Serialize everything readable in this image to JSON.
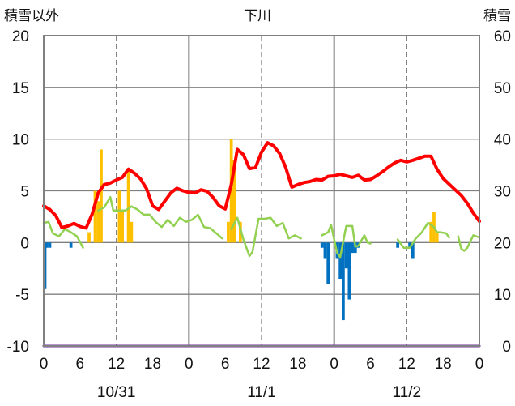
{
  "chart_data": {
    "type": "bar",
    "title": "下川",
    "left_axis_label": "積雪以外",
    "right_axis_label": "積雪",
    "left_ylim": [
      -10,
      20
    ],
    "left_yticks": [
      "20",
      "15",
      "10",
      "5",
      "0",
      "-5",
      "-10"
    ],
    "right_ylim": [
      0,
      60
    ],
    "right_yticks": [
      "60",
      "50",
      "40",
      "30",
      "20",
      "10",
      "0"
    ],
    "x_hours": [
      0,
      72
    ],
    "x_tick_labels": [
      "0",
      "6",
      "12",
      "18",
      "0",
      "6",
      "12",
      "18",
      "0",
      "6",
      "12",
      "18",
      "0"
    ],
    "day_labels": [
      "10/31",
      "11/1",
      "11/2"
    ],
    "grid": true,
    "series": [
      {
        "type": "bar",
        "color": "#FFC000",
        "points": [
          [
            7.5,
            1.0
          ],
          [
            8.5,
            5.0
          ],
          [
            9,
            4.0
          ],
          [
            9.5,
            9.0
          ],
          [
            12.5,
            5.0
          ],
          [
            13,
            3.0
          ],
          [
            14,
            7.0
          ],
          [
            14.5,
            2.0
          ],
          [
            30.5,
            2.0
          ],
          [
            31,
            10.0
          ],
          [
            31.5,
            8.0
          ],
          [
            32.5,
            2.0
          ],
          [
            64,
            2.0
          ],
          [
            64.5,
            3.0
          ],
          [
            65,
            1.0
          ]
        ]
      },
      {
        "type": "bar",
        "color": "#0070C0",
        "points": [
          [
            0.2,
            -4.5
          ],
          [
            0.5,
            -0.5
          ],
          [
            1,
            -0.5
          ],
          [
            4.5,
            -0.5
          ],
          [
            46,
            -0.5
          ],
          [
            46.5,
            -1.5
          ],
          [
            47,
            -4.0
          ],
          [
            48.5,
            -1.5
          ],
          [
            49,
            -3.5
          ],
          [
            49.5,
            -7.5
          ],
          [
            50,
            -2.5
          ],
          [
            50.5,
            -5.5
          ],
          [
            51,
            -1.0
          ],
          [
            51.5,
            -1.0
          ],
          [
            52,
            -0.5
          ],
          [
            58.5,
            -0.5
          ],
          [
            60.5,
            -0.5
          ],
          [
            61,
            -1.5
          ]
        ]
      },
      {
        "type": "line",
        "color": "#92D050",
        "segments": [
          [
            [
              0,
              1.9
            ],
            [
              0.8,
              2.0
            ],
            [
              1.5,
              0.9
            ],
            [
              2.5,
              0.6
            ],
            [
              3.5,
              1.3
            ],
            [
              4.5,
              1.0
            ],
            [
              5.5,
              0.6
            ],
            [
              6.5,
              -0.5
            ]
          ],
          [
            [
              9,
              3.1
            ],
            [
              10,
              3.4
            ],
            [
              11,
              4.4
            ],
            [
              11.5,
              3.1
            ],
            [
              12.5,
              3.1
            ],
            [
              13.5,
              3.1
            ],
            [
              14.5,
              3.5
            ],
            [
              15.5,
              3.2
            ],
            [
              16.5,
              2.7
            ],
            [
              17.5,
              2.7
            ],
            [
              18.5,
              2.0
            ],
            [
              19.5,
              1.5
            ],
            [
              20.5,
              2.2
            ],
            [
              21.5,
              1.6
            ],
            [
              22.5,
              2.4
            ],
            [
              23.5,
              2.0
            ],
            [
              24.5,
              2.2
            ],
            [
              25.5,
              2.7
            ],
            [
              26.5,
              1.5
            ],
            [
              27.5,
              1.4
            ],
            [
              28.5,
              0.9
            ],
            [
              29.5,
              0.4
            ]
          ],
          [
            [
              31,
              1.3
            ],
            [
              32,
              2.4
            ],
            [
              33,
              0.3
            ],
            [
              34,
              -1.3
            ],
            [
              34.5,
              -0.9
            ],
            [
              35.5,
              2.3
            ],
            [
              36.5,
              2.3
            ],
            [
              37.5,
              2.4
            ],
            [
              38.5,
              1.6
            ],
            [
              39.5,
              1.9
            ],
            [
              40.5,
              0.4
            ],
            [
              41.5,
              0.7
            ],
            [
              42.5,
              0.4
            ]
          ],
          [
            [
              46,
              0.7
            ],
            [
              47,
              1.0
            ],
            [
              47.5,
              1.7
            ],
            [
              48,
              0.3
            ],
            [
              48.5,
              -1.0
            ],
            [
              49,
              -1.4
            ],
            [
              50,
              1.6
            ],
            [
              51,
              1.6
            ],
            [
              51.5,
              -0.4
            ],
            [
              52,
              -0.3
            ],
            [
              53,
              0.7
            ],
            [
              53.5,
              0.0
            ],
            [
              54,
              -0.1
            ]
          ],
          [
            [
              58.5,
              0.3
            ],
            [
              59.5,
              -0.5
            ],
            [
              60.5,
              -0.5
            ],
            [
              61.5,
              0.4
            ],
            [
              62.5,
              1.0
            ],
            [
              63.5,
              1.9
            ],
            [
              64.5,
              1.5
            ],
            [
              65,
              1.0
            ],
            [
              65.5,
              1.0
            ],
            [
              66.5,
              0.9
            ],
            [
              67,
              0.5
            ]
          ],
          [
            [
              68.5,
              0.6
            ],
            [
              69,
              -0.6
            ],
            [
              69.5,
              -0.8
            ],
            [
              70,
              -0.5
            ],
            [
              71,
              0.7
            ],
            [
              72,
              0.5
            ]
          ]
        ]
      },
      {
        "type": "line",
        "color": "#FF0000",
        "axis": "right",
        "points": [
          [
            0,
            27.1
          ],
          [
            1,
            26.4
          ],
          [
            2,
            25.2
          ],
          [
            3,
            22.9
          ],
          [
            4,
            23.2
          ],
          [
            5,
            23.7
          ],
          [
            6,
            23.1
          ],
          [
            7,
            22.8
          ],
          [
            8,
            25.5
          ],
          [
            9,
            29.6
          ],
          [
            10,
            31.2
          ],
          [
            11,
            31.5
          ],
          [
            12,
            32.1
          ],
          [
            13,
            32.6
          ],
          [
            14,
            34.2
          ],
          [
            15,
            33.4
          ],
          [
            16,
            32.3
          ],
          [
            17,
            30.4
          ],
          [
            18,
            27.1
          ],
          [
            19,
            26.4
          ],
          [
            20,
            28.0
          ],
          [
            21,
            29.6
          ],
          [
            22,
            30.5
          ],
          [
            23,
            30.0
          ],
          [
            24,
            29.7
          ],
          [
            25,
            29.6
          ],
          [
            26,
            30.2
          ],
          [
            27,
            29.9
          ],
          [
            28,
            28.7
          ],
          [
            29,
            27.1
          ],
          [
            30,
            26.5
          ],
          [
            31,
            31.2
          ],
          [
            32,
            38.0
          ],
          [
            33,
            37.0
          ],
          [
            34,
            34.3
          ],
          [
            35,
            34.5
          ],
          [
            36,
            37.5
          ],
          [
            37,
            39.3
          ],
          [
            38,
            38.7
          ],
          [
            39,
            37.2
          ],
          [
            40,
            34.5
          ],
          [
            41,
            30.7
          ],
          [
            42,
            31.2
          ],
          [
            43,
            31.6
          ],
          [
            44,
            31.8
          ],
          [
            45,
            32.2
          ],
          [
            46,
            32.1
          ],
          [
            47,
            32.8
          ],
          [
            48,
            32.9
          ],
          [
            49,
            33.2
          ],
          [
            50,
            32.9
          ],
          [
            51,
            32.6
          ],
          [
            52,
            33.0
          ],
          [
            53,
            32.1
          ],
          [
            54,
            32.2
          ],
          [
            55,
            32.9
          ],
          [
            56,
            33.7
          ],
          [
            57,
            34.6
          ],
          [
            58,
            35.4
          ],
          [
            59,
            35.9
          ],
          [
            60,
            35.6
          ],
          [
            61,
            35.9
          ],
          [
            62,
            36.3
          ],
          [
            63,
            36.7
          ],
          [
            64,
            36.7
          ],
          [
            65,
            34.2
          ],
          [
            66,
            32.4
          ],
          [
            67,
            31.3
          ],
          [
            68,
            30.2
          ],
          [
            69,
            29.1
          ],
          [
            70,
            27.6
          ],
          [
            71,
            25.7
          ],
          [
            72,
            24.1
          ]
        ]
      },
      {
        "type": "line",
        "color": "#7030A0",
        "points": [
          [
            0,
            -10
          ],
          [
            72,
            -10
          ]
        ]
      }
    ]
  }
}
